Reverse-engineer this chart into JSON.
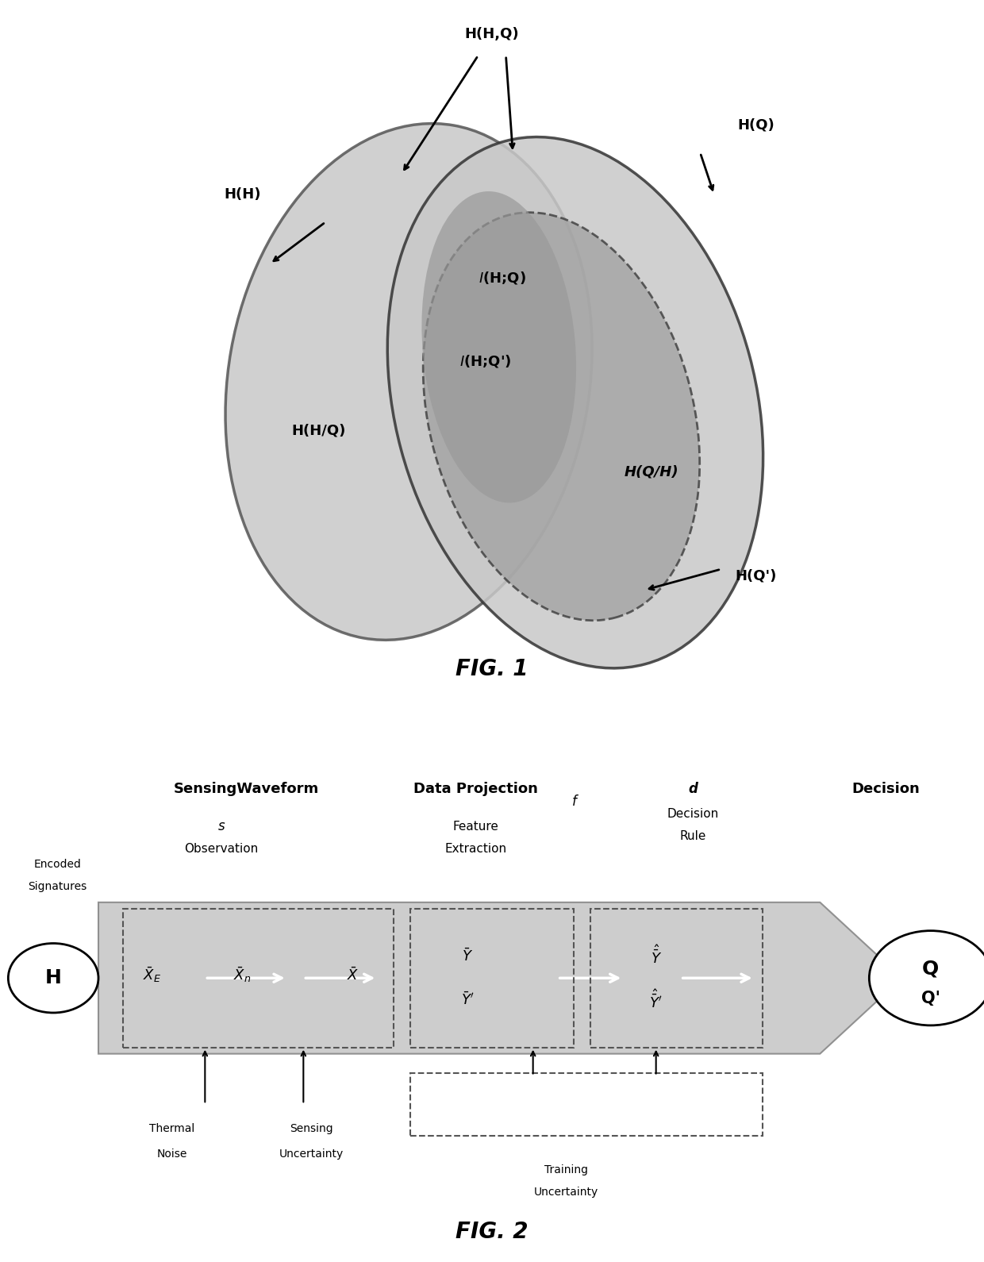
{
  "fig1_title": "FIG. 1",
  "fig2_title": "FIG. 2",
  "bg_color": "#ffffff",
  "ellipse_fill": "#c8c8c8",
  "overlap_fill": "#a0a0a0",
  "inner_ellipse_fill": "#b8b8b8",
  "labels": {
    "HHQ": "H(H,Q)",
    "HH": "H(H)",
    "HQ": "H(Q)",
    "IHQ": "I(H;Q)",
    "IHQp": "I(H;Q')",
    "HHgQ": "H(H/Q)",
    "HQgH": "H(Q/H)",
    "HQp": "H(Q')"
  },
  "sensing_waveform": "SensingWaveform",
  "data_projection": "Data Projection",
  "decision_label": "Decision",
  "s_label": "s",
  "f_label": "f",
  "d_label": "d",
  "observation": "Observation",
  "feature_extraction": "Feature\nExtraction",
  "decision_rule": "Decision\nRule",
  "encoded_signatures": "Encoded\nSignatures",
  "thermal_noise": "Thermal\nNoise",
  "sensing_uncertainty": "Sensing\nUncertainty",
  "training_uncertainty": "Training\nUncertainty",
  "H_node": "H",
  "QQ_node": "Q\nQ'",
  "XE": "$\\bar{X}_E$",
  "Xn": "$\\bar{X}_n$",
  "X": "$\\bar{X}$",
  "Y": "$\\bar{Y}$",
  "Yhat": "$\\hat{\\bar{Y}}$",
  "Yp": "$\\bar{Y}'$",
  "Yhatp": "$\\hat{\\bar{Y}}'$"
}
